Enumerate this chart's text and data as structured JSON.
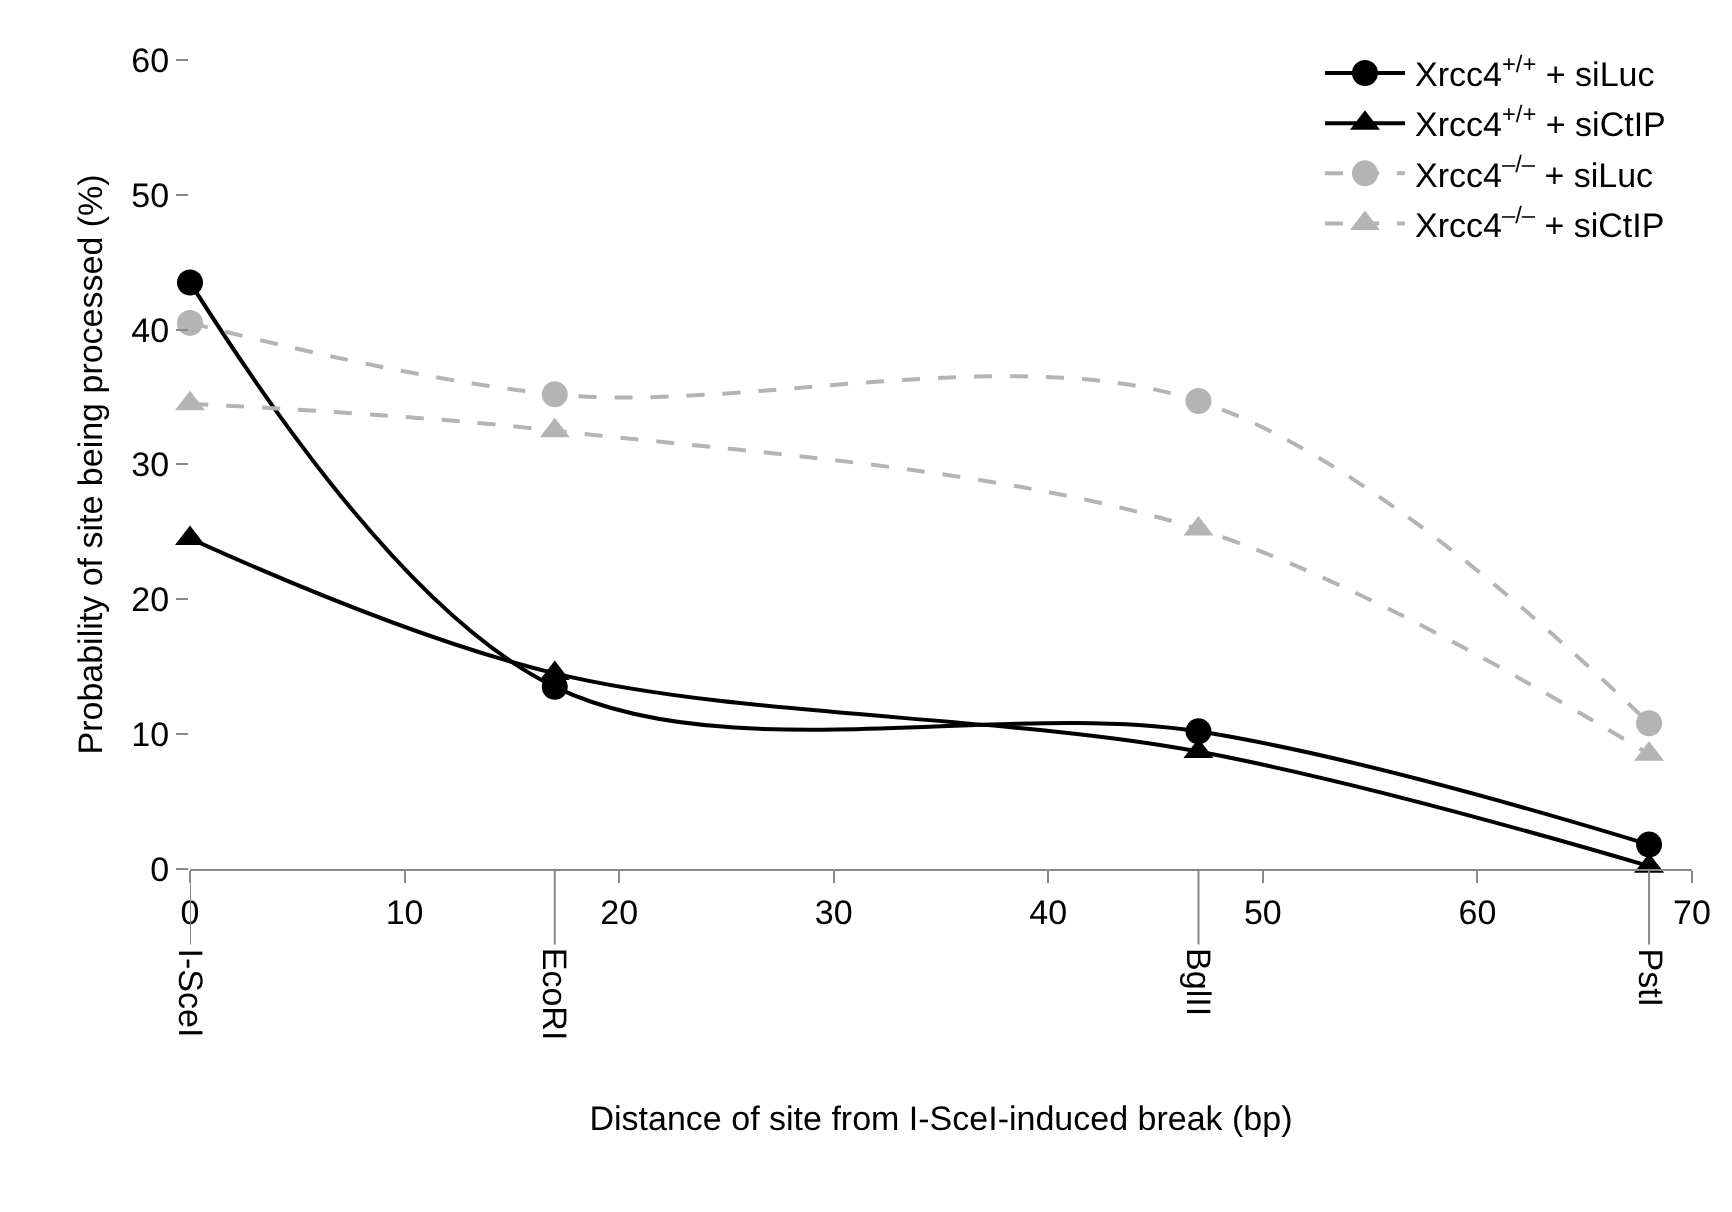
{
  "chart_data": {
    "type": "line",
    "xlabel": "Distance of site from I-SceI-induced break (bp)",
    "ylabel": "Probability of site being processed (%)",
    "xlim": [
      0,
      70
    ],
    "xticks": [
      0,
      10,
      20,
      30,
      40,
      50,
      60,
      70
    ],
    "ylim": [
      0,
      60
    ],
    "yticks": [
      0,
      10,
      20,
      30,
      40,
      50,
      60
    ],
    "annotations": [
      {
        "text": "I-SceI",
        "x": 0
      },
      {
        "text": "EcoRI",
        "x": 17
      },
      {
        "text": "BglII",
        "x": 47
      },
      {
        "text": "PstI",
        "x": 68
      }
    ],
    "x": [
      0,
      17,
      47,
      68
    ],
    "grid": false,
    "legend": "top right",
    "series": [
      {
        "name": "Xrcc4$^{+/+}$ + siLuc",
        "color": "#000000",
        "marker": "circle",
        "line_style": "solid",
        "values": [
          43.5,
          13.5,
          10.2,
          1.8
        ]
      },
      {
        "name": "Xrcc4$^{+/+}$ + siCtIP",
        "color": "#000000",
        "marker": "triangle",
        "line_style": "solid",
        "values": [
          24.5,
          14.5,
          8.7,
          0.2
        ]
      },
      {
        "name": "Xrcc4$^{–/–}$ + siLuc",
        "color": "#b4b4b4",
        "marker": "circle",
        "line_style": "dashed",
        "values": [
          40.5,
          35.2,
          34.7,
          10.8
        ]
      },
      {
        "name": "Xrcc4$^{–/–}$ + siCtIP",
        "color": "#b4b4b4",
        "marker": "triangle",
        "line_style": "dashed",
        "values": [
          34.5,
          32.5,
          25.2,
          8.5
        ]
      }
    ]
  }
}
